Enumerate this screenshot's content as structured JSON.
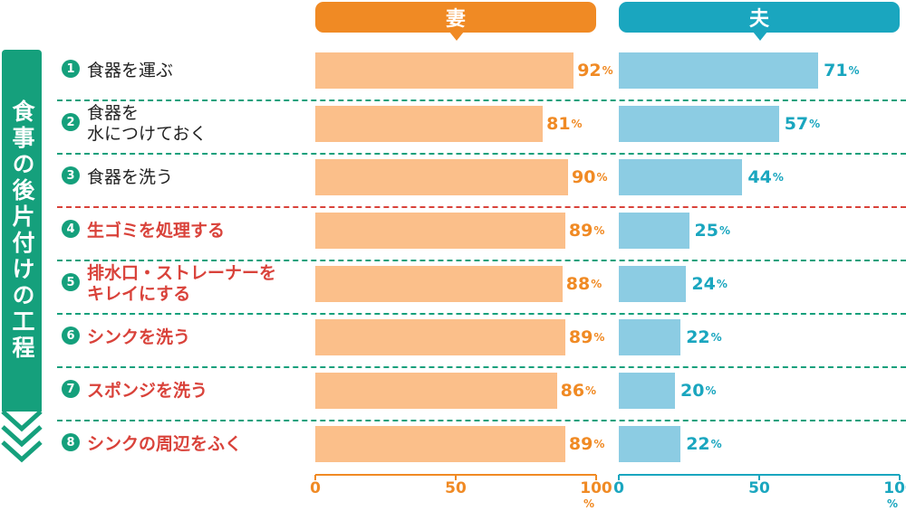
{
  "headers": {
    "wife": "妻",
    "husband": "夫"
  },
  "process_label": "食事の後片付けの工程",
  "unit": "%",
  "chart_data": {
    "type": "bar",
    "categories": [
      "食器を運ぶ",
      "食器を\n水につけておく",
      "食器を洗う",
      "生ゴミを処理する",
      "排水口・ストレーナーを\nキレイにする",
      "シンクを洗う",
      "スポンジを洗う",
      "シンクの周辺をふく"
    ],
    "numbers": [
      "1",
      "2",
      "3",
      "4",
      "5",
      "6",
      "7",
      "8"
    ],
    "highlighted": [
      false,
      false,
      false,
      true,
      true,
      true,
      true,
      true
    ],
    "series": [
      {
        "name": "妻",
        "values": [
          92,
          81,
          90,
          89,
          88,
          89,
          86,
          89
        ]
      },
      {
        "name": "夫",
        "values": [
          71,
          57,
          44,
          25,
          24,
          22,
          20,
          22
        ]
      }
    ],
    "xlim": [
      0,
      100
    ],
    "ticks": [
      "0",
      "50",
      "100"
    ],
    "colors": {
      "wife_bar": "#fbbf8a",
      "wife_text": "#f08a24",
      "husband_bar": "#8ccce3",
      "husband_text": "#1aa6bf",
      "accent_green": "#15a07c",
      "highlight_red": "#d9423a"
    }
  }
}
